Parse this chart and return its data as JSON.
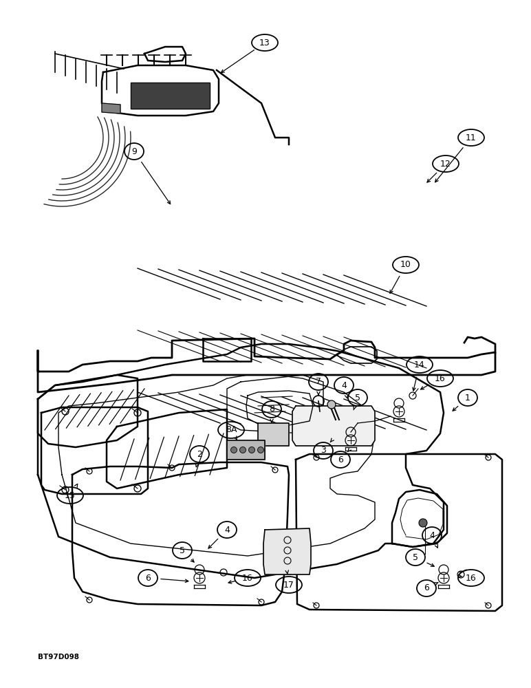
{
  "bg": "#ffffff",
  "lc": "#000000",
  "dpi": 100,
  "fw": 7.72,
  "fh": 10.0,
  "watermark": "BT97D098"
}
